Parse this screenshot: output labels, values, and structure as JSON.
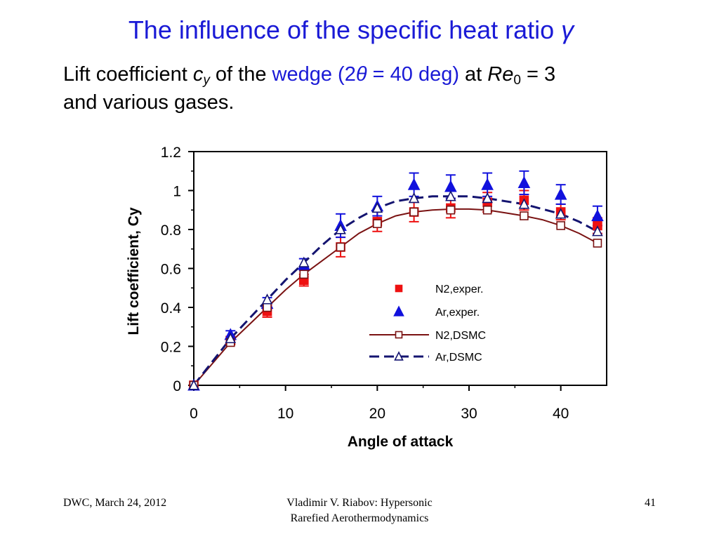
{
  "slide": {
    "title_prefix": "The influence of the specific heat ratio ",
    "title_symbol": "γ",
    "subtitle": {
      "part1": "Lift coefficient ",
      "cy_letter": "c",
      "cy_sub": "y",
      "part2": " of the ",
      "wedge_text": "wedge (2",
      "theta": "θ",
      "wedge_rest": " = 40 deg)",
      "part3": " at ",
      "re_text": "Re",
      "re_sub": "0",
      "part4": " = 3",
      "line2": "and various gases."
    }
  },
  "footer": {
    "left": "DWC, March 24, 2012",
    "center_line1": "Vladimir V. Riabov: Hypersonic",
    "center_line2": "Rarefied Aerothermodynamics",
    "page_number": "41"
  },
  "colors": {
    "title_blue": "#1a1ad6",
    "n2_exper": "#ee1111",
    "ar_exper": "#1111dd",
    "n2_dsmc": "#7a1212",
    "ar_dsmc": "#141470"
  },
  "chart_data": {
    "type": "scatter",
    "xlabel": "Angle of attack",
    "ylabel": "Lift coefficient, Cy",
    "xlim": [
      0,
      45
    ],
    "ylim": [
      0,
      1.2
    ],
    "xticks": [
      0,
      10,
      20,
      30,
      40
    ],
    "xtick_labels": [
      "0",
      "10",
      "20",
      "30",
      "40"
    ],
    "yticks": [
      0,
      0.2,
      0.4,
      0.6,
      0.8,
      1.0,
      1.2
    ],
    "ytick_labels": [
      "0",
      "0.2",
      "0.4",
      "0.6",
      "0.8",
      "1",
      "1.2"
    ],
    "grid": false,
    "legend_position": "center-right",
    "series": [
      {
        "name": "N2,exper.",
        "style": "filled-square-errorbars",
        "x": [
          0,
          4,
          8,
          12,
          16,
          20,
          24,
          28,
          32,
          36,
          40,
          44
        ],
        "y": [
          0.0,
          0.23,
          0.38,
          0.54,
          0.71,
          0.84,
          0.89,
          0.91,
          0.94,
          0.95,
          0.89,
          0.82
        ],
        "yerr": [
          0.0,
          0.02,
          0.03,
          0.03,
          0.05,
          0.05,
          0.05,
          0.05,
          0.05,
          0.05,
          0.04,
          0.04
        ]
      },
      {
        "name": "Ar,exper.",
        "style": "filled-triangle-errorbars",
        "x": [
          0,
          4,
          8,
          12,
          16,
          20,
          24,
          28,
          32,
          36,
          40,
          44
        ],
        "y": [
          0.0,
          0.26,
          0.42,
          0.62,
          0.82,
          0.92,
          1.03,
          1.02,
          1.03,
          1.04,
          0.98,
          0.87
        ],
        "yerr": [
          0.0,
          0.02,
          0.03,
          0.03,
          0.06,
          0.05,
          0.06,
          0.06,
          0.06,
          0.06,
          0.05,
          0.05
        ]
      },
      {
        "name": "N2,DSMC",
        "style": "solid-line-open-square",
        "x": [
          0,
          4,
          8,
          12,
          16,
          20,
          24,
          28,
          32,
          36,
          40,
          44
        ],
        "y": [
          0.0,
          0.22,
          0.4,
          0.57,
          0.71,
          0.83,
          0.89,
          0.9,
          0.9,
          0.87,
          0.82,
          0.73
        ],
        "line_x": [
          0,
          2,
          4,
          6,
          8,
          10,
          12,
          14,
          16,
          18,
          20,
          22,
          24,
          26,
          28,
          30,
          32,
          34,
          36,
          38,
          40,
          42,
          44
        ],
        "line_y": [
          0.0,
          0.11,
          0.22,
          0.31,
          0.4,
          0.49,
          0.57,
          0.64,
          0.71,
          0.78,
          0.83,
          0.87,
          0.89,
          0.9,
          0.905,
          0.905,
          0.9,
          0.885,
          0.87,
          0.85,
          0.82,
          0.78,
          0.73
        ]
      },
      {
        "name": "Ar,DSMC",
        "style": "dashed-line-open-triangle",
        "x": [
          0,
          4,
          8,
          12,
          16,
          20,
          24,
          28,
          32,
          36,
          40,
          44
        ],
        "y": [
          0.0,
          0.24,
          0.44,
          0.63,
          0.8,
          0.91,
          0.96,
          0.97,
          0.96,
          0.93,
          0.88,
          0.79
        ],
        "line_x": [
          0,
          2,
          4,
          6,
          8,
          10,
          12,
          14,
          16,
          18,
          20,
          22,
          24,
          26,
          28,
          30,
          32,
          34,
          36,
          38,
          40,
          42,
          44
        ],
        "line_y": [
          0.0,
          0.12,
          0.24,
          0.34,
          0.44,
          0.54,
          0.63,
          0.72,
          0.8,
          0.86,
          0.91,
          0.945,
          0.96,
          0.97,
          0.97,
          0.97,
          0.96,
          0.945,
          0.93,
          0.905,
          0.88,
          0.84,
          0.79
        ]
      }
    ]
  }
}
